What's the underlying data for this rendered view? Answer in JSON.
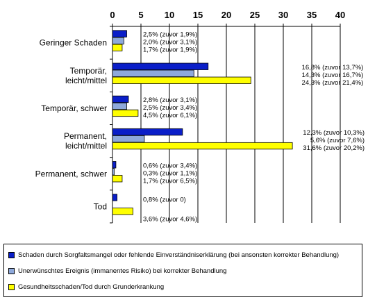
{
  "chart_data": {
    "type": "bar",
    "orientation": "horizontal",
    "x_ticks": [
      0,
      5,
      10,
      15,
      20,
      25,
      30,
      35,
      40
    ],
    "xlim": [
      0,
      40
    ],
    "grid": true,
    "legend_position": "bottom",
    "categories": [
      [
        "Geringer Schaden"
      ],
      [
        "Temporär,",
        "leicht/mittel"
      ],
      [
        "Temporär, schwer"
      ],
      [
        "Permanent,",
        "leicht/mittel"
      ],
      [
        "Permanent, schwer"
      ],
      [
        "Tod"
      ]
    ],
    "series": [
      {
        "name": "Schaden durch Sorgfaltsmangel oder fehlende Einverständniserklärung (bei ansonsten korrekter Behandlung)",
        "color": "#0a1ec8",
        "values": [
          2.5,
          16.8,
          2.8,
          12.3,
          0.6,
          0.8
        ],
        "labels": [
          "2,5% (zuvor 1,9%)",
          "16,8% (zuvor 13,7%)",
          "2,8% (zuvor 3,1%)",
          "12,3% (zuvor 10,3%)",
          "0,6% (zuvor 3,4%)",
          "0,8% (zuvor 0)"
        ]
      },
      {
        "name": "Unerwünschtes Ereignis (immanentes Risiko) bei korrekter Behandlung",
        "color": "#8ea9db",
        "values": [
          2.0,
          14.3,
          2.5,
          5.6,
          0.3,
          null
        ],
        "labels": [
          "2,0% (zuvor 3,1%)",
          "14,3% (zuvor 16,7%)",
          "2,5% (zuvor 3,4%)",
          "5,6% (zuvor 7,6%)",
          "0,3% (zuvor 1,1%)",
          null
        ]
      },
      {
        "name": "Gesundheitsschaden/Tod durch Grunderkrankung",
        "color": "#ffff00",
        "values": [
          1.7,
          24.3,
          4.5,
          31.6,
          1.7,
          3.6
        ],
        "labels": [
          "1,7% (zuvor 1,9%)",
          "24,3% (zuvor 21,4%)",
          "4,5% (zuvor 6,1%)",
          "31,6% (zuvor 20,2%)",
          "1,7% (zuvor 6,5%)",
          "3,6% (zuvor 4,6%)"
        ]
      }
    ]
  }
}
